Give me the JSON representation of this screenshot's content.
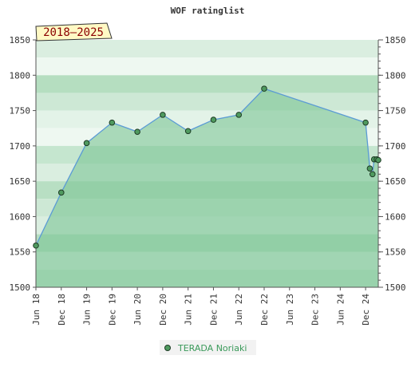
{
  "chart_data": {
    "type": "area",
    "title": "WOF ratinglist",
    "badge": "2018–2025",
    "xlabel": "",
    "ylabel": "",
    "ylim": [
      1500,
      1850
    ],
    "yticks": [
      1500,
      1550,
      1600,
      1650,
      1700,
      1750,
      1800,
      1850
    ],
    "xlim": [
      "2018-06",
      "2025-03"
    ],
    "xticks": [
      {
        "date": "2018-06",
        "label": "Jun 18"
      },
      {
        "date": "2018-12",
        "label": "Dec 18"
      },
      {
        "date": "2019-06",
        "label": "Jun 19"
      },
      {
        "date": "2019-12",
        "label": "Dec 19"
      },
      {
        "date": "2020-06",
        "label": "Jun 20"
      },
      {
        "date": "2020-12",
        "label": "Dec 20"
      },
      {
        "date": "2021-06",
        "label": "Jun 21"
      },
      {
        "date": "2021-12",
        "label": "Dec 21"
      },
      {
        "date": "2022-06",
        "label": "Jun 22"
      },
      {
        "date": "2022-12",
        "label": "Dec 22"
      },
      {
        "date": "2023-06",
        "label": "Jun 23"
      },
      {
        "date": "2023-12",
        "label": "Dec 23"
      },
      {
        "date": "2024-06",
        "label": "Jun 24"
      },
      {
        "date": "2024-12",
        "label": "Dec 24"
      }
    ],
    "grid": true,
    "legend_position": "bottom",
    "series": [
      {
        "name": "TERADA Noriaki",
        "color": "#5b9bd5",
        "fill": "#7cc495",
        "marker": "#4f9a5f",
        "points": [
          {
            "x": "2018-06",
            "y": 1559
          },
          {
            "x": "2018-12",
            "y": 1634
          },
          {
            "x": "2019-06",
            "y": 1704
          },
          {
            "x": "2019-12",
            "y": 1733
          },
          {
            "x": "2020-06",
            "y": 1720
          },
          {
            "x": "2020-12",
            "y": 1744
          },
          {
            "x": "2021-06",
            "y": 1721
          },
          {
            "x": "2021-12",
            "y": 1737
          },
          {
            "x": "2022-06",
            "y": 1744
          },
          {
            "x": "2022-12",
            "y": 1781
          },
          {
            "x": "2024-12",
            "y": 1733
          },
          {
            "x": "2025-01",
            "y": 1668
          },
          {
            "x": "2025-01-20",
            "y": 1660
          },
          {
            "x": "2025-02",
            "y": 1681
          },
          {
            "x": "2025-02-20",
            "y": 1681
          },
          {
            "x": "2025-03",
            "y": 1680
          }
        ]
      }
    ]
  }
}
